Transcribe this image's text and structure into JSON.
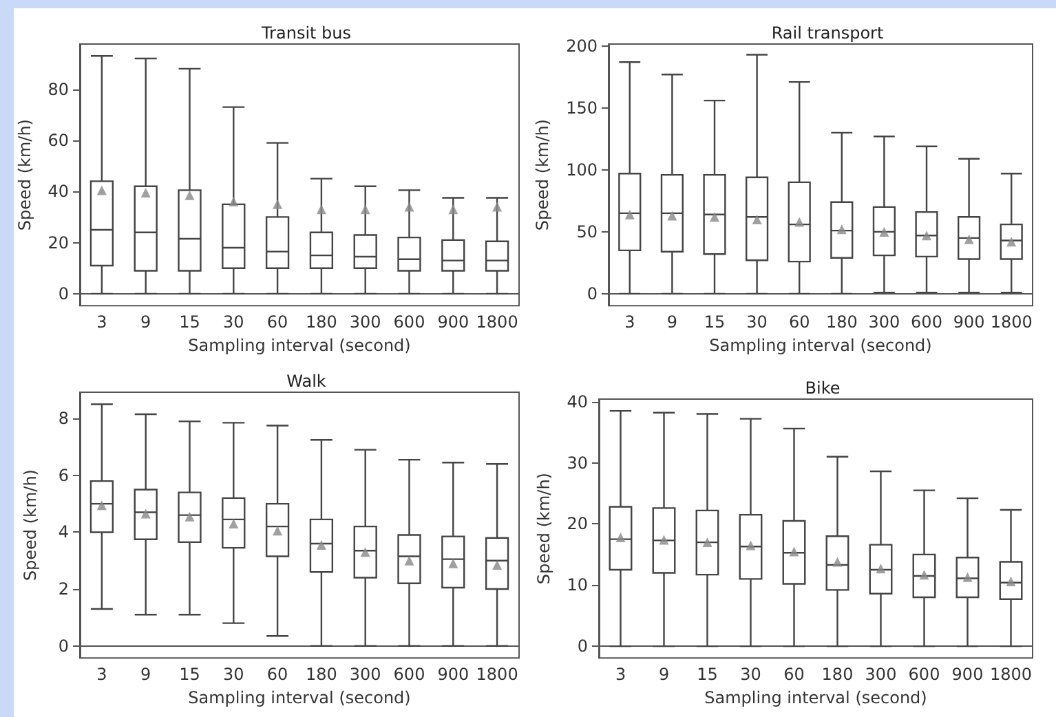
{
  "chart_data": [
    {
      "type": "box",
      "title": "Transit bus",
      "xlabel": "Sampling interval (second)",
      "ylabel": "Speed (km/h)",
      "categories": [
        "3",
        "9",
        "15",
        "30",
        "60",
        "180",
        "300",
        "600",
        "900",
        "1800"
      ],
      "marker": "triangle",
      "ylim": [
        -4.65,
        97.65
      ],
      "yticks": [
        0,
        20,
        40,
        60,
        80
      ],
      "boxes": [
        {
          "low": 0,
          "q1": 11,
          "median": 25,
          "q3": 44,
          "high": 93,
          "mean": 40.5
        },
        {
          "low": 0,
          "q1": 9,
          "median": 24,
          "q3": 42,
          "high": 92,
          "mean": 39.5
        },
        {
          "low": 0,
          "q1": 9,
          "median": 21.5,
          "q3": 40.5,
          "high": 88,
          "mean": 38.5
        },
        {
          "low": 0,
          "q1": 10,
          "median": 18,
          "q3": 35,
          "high": 73,
          "mean": 36
        },
        {
          "low": 0,
          "q1": 10,
          "median": 16.5,
          "q3": 30,
          "high": 59,
          "mean": 35
        },
        {
          "low": 0,
          "q1": 10,
          "median": 15,
          "q3": 24,
          "high": 45,
          "mean": 33
        },
        {
          "low": 0,
          "q1": 10,
          "median": 14.5,
          "q3": 23,
          "high": 42,
          "mean": 33
        },
        {
          "low": 0,
          "q1": 9,
          "median": 13.5,
          "q3": 22,
          "high": 40.5,
          "mean": 34
        },
        {
          "low": 0,
          "q1": 9,
          "median": 13,
          "q3": 21,
          "high": 37.5,
          "mean": 33
        },
        {
          "low": 0,
          "q1": 9,
          "median": 13,
          "q3": 20.5,
          "high": 37.5,
          "mean": 34
        }
      ]
    },
    {
      "type": "box",
      "title": "Rail transport",
      "xlabel": "Sampling interval (second)",
      "ylabel": "Speed (km/h)",
      "categories": [
        "3",
        "9",
        "15",
        "30",
        "60",
        "180",
        "300",
        "600",
        "900",
        "1800"
      ],
      "marker": "triangle",
      "ylim": [
        -9.6,
        201.6
      ],
      "yticks": [
        0,
        50,
        100,
        150,
        200
      ],
      "boxes": [
        {
          "low": 0,
          "q1": 35,
          "median": 65,
          "q3": 97,
          "high": 187,
          "mean": 64
        },
        {
          "low": 0,
          "q1": 34,
          "median": 65,
          "q3": 96,
          "high": 177,
          "mean": 63
        },
        {
          "low": 0,
          "q1": 32,
          "median": 64,
          "q3": 96,
          "high": 156,
          "mean": 62
        },
        {
          "low": 0,
          "q1": 27,
          "median": 62,
          "q3": 94,
          "high": 193,
          "mean": 60
        },
        {
          "low": 0,
          "q1": 26,
          "median": 56,
          "q3": 90,
          "high": 171,
          "mean": 58
        },
        {
          "low": 0,
          "q1": 29,
          "median": 51,
          "q3": 74,
          "high": 130,
          "mean": 52
        },
        {
          "low": 1,
          "q1": 31,
          "median": 50,
          "q3": 70,
          "high": 127,
          "mean": 50
        },
        {
          "low": 1,
          "q1": 30,
          "median": 47,
          "q3": 66,
          "high": 119,
          "mean": 47
        },
        {
          "low": 1,
          "q1": 28,
          "median": 45,
          "q3": 62,
          "high": 109,
          "mean": 44
        },
        {
          "low": 1,
          "q1": 28,
          "median": 43,
          "q3": 56,
          "high": 97,
          "mean": 42
        }
      ]
    },
    {
      "type": "box",
      "title": "Walk",
      "xlabel": "Sampling interval (second)",
      "ylabel": "Speed (km/h)",
      "categories": [
        "3",
        "9",
        "15",
        "30",
        "60",
        "180",
        "300",
        "600",
        "900",
        "1800"
      ],
      "marker": "triangle",
      "ylim": [
        -0.425,
        8.925
      ],
      "yticks": [
        0,
        2,
        4,
        6,
        8
      ],
      "boxes": [
        {
          "low": 1.3,
          "q1": 4.0,
          "median": 5.0,
          "q3": 5.8,
          "high": 8.5,
          "mean": 4.95
        },
        {
          "low": 1.1,
          "q1": 3.75,
          "median": 4.7,
          "q3": 5.5,
          "high": 8.15,
          "mean": 4.65
        },
        {
          "low": 1.1,
          "q1": 3.65,
          "median": 4.6,
          "q3": 5.4,
          "high": 7.9,
          "mean": 4.55
        },
        {
          "low": 0.8,
          "q1": 3.45,
          "median": 4.45,
          "q3": 5.2,
          "high": 7.85,
          "mean": 4.3
        },
        {
          "low": 0.35,
          "q1": 3.15,
          "median": 4.2,
          "q3": 5.0,
          "high": 7.75,
          "mean": 4.05
        },
        {
          "low": 0,
          "q1": 2.6,
          "median": 3.6,
          "q3": 4.45,
          "high": 7.25,
          "mean": 3.55
        },
        {
          "low": 0,
          "q1": 2.4,
          "median": 3.35,
          "q3": 4.2,
          "high": 6.9,
          "mean": 3.3
        },
        {
          "low": 0,
          "q1": 2.2,
          "median": 3.15,
          "q3": 3.9,
          "high": 6.55,
          "mean": 3.0
        },
        {
          "low": 0,
          "q1": 2.05,
          "median": 3.05,
          "q3": 3.85,
          "high": 6.45,
          "mean": 2.9
        },
        {
          "low": 0,
          "q1": 2.0,
          "median": 3.0,
          "q3": 3.8,
          "high": 6.4,
          "mean": 2.85
        }
      ]
    },
    {
      "type": "box",
      "title": "Bike",
      "xlabel": "Sampling interval (second)",
      "ylabel": "Speed (km/h)",
      "categories": [
        "3",
        "9",
        "15",
        "30",
        "60",
        "180",
        "300",
        "600",
        "900",
        "1800"
      ],
      "marker": "triangle",
      "ylim": [
        -1.925,
        40.425
      ],
      "yticks": [
        0,
        10,
        20,
        30,
        40
      ],
      "boxes": [
        {
          "low": 0,
          "q1": 12.5,
          "median": 17.5,
          "q3": 22.8,
          "high": 38.5,
          "mean": 17.8
        },
        {
          "low": 0,
          "q1": 12,
          "median": 17.3,
          "q3": 22.6,
          "high": 38.2,
          "mean": 17.4
        },
        {
          "low": 0,
          "q1": 11.7,
          "median": 17,
          "q3": 22.2,
          "high": 38,
          "mean": 17
        },
        {
          "low": 0,
          "q1": 11,
          "median": 16.3,
          "q3": 21.5,
          "high": 37.2,
          "mean": 16.5
        },
        {
          "low": 0,
          "q1": 10.2,
          "median": 15.3,
          "q3": 20.5,
          "high": 35.6,
          "mean": 15.5
        },
        {
          "low": 0,
          "q1": 9.2,
          "median": 13.3,
          "q3": 18,
          "high": 31,
          "mean": 13.8
        },
        {
          "low": 0,
          "q1": 8.6,
          "median": 12.5,
          "q3": 16.6,
          "high": 28.6,
          "mean": 12.7
        },
        {
          "low": 0,
          "q1": 8,
          "median": 11.5,
          "q3": 15,
          "high": 25.5,
          "mean": 11.7
        },
        {
          "low": 0,
          "q1": 8,
          "median": 11.1,
          "q3": 14.5,
          "high": 24.2,
          "mean": 11.3
        },
        {
          "low": 0,
          "q1": 7.7,
          "median": 10.4,
          "q3": 13.8,
          "high": 22.3,
          "mean": 10.6
        }
      ]
    }
  ]
}
